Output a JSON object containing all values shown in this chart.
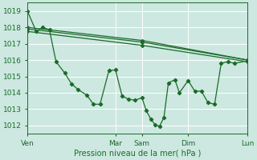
{
  "bg_color": "#cde8e0",
  "line_color": "#1a6b2a",
  "grid_color": "#ffffff",
  "xlabel": "Pression niveau de la mer( hPa )",
  "ylim": [
    1011.5,
    1019.5
  ],
  "yticks": [
    1012,
    1013,
    1014,
    1015,
    1016,
    1017,
    1018,
    1019
  ],
  "xtick_labels": [
    "Ven",
    "Mar",
    "Sam",
    "Dim",
    "Lun"
  ],
  "xtick_positions": [
    0,
    0.4,
    0.52,
    0.73,
    1.0
  ],
  "xmax": 1.0,
  "series_smooth": [
    {
      "x": [
        0.0,
        0.52,
        1.0
      ],
      "y": [
        1018.0,
        1017.2,
        1016.0
      ]
    },
    {
      "x": [
        0.0,
        0.52,
        1.0
      ],
      "y": [
        1017.9,
        1017.1,
        1016.0
      ]
    },
    {
      "x": [
        0.0,
        0.52,
        1.0
      ],
      "y": [
        1017.75,
        1016.9,
        1015.9
      ]
    }
  ],
  "series_zigzag": {
    "x": [
      0.0,
      0.04,
      0.07,
      0.1,
      0.13,
      0.17,
      0.2,
      0.23,
      0.27,
      0.3,
      0.33,
      0.37,
      0.4,
      0.43,
      0.46,
      0.49,
      0.52,
      0.54,
      0.56,
      0.58,
      0.6,
      0.62,
      0.64,
      0.67,
      0.69,
      0.73,
      0.76,
      0.79,
      0.82,
      0.85,
      0.88,
      0.91,
      0.94,
      1.0
    ],
    "y": [
      1019.0,
      1017.75,
      1018.0,
      1017.85,
      1015.9,
      1015.2,
      1014.55,
      1014.2,
      1013.85,
      1013.3,
      1013.3,
      1015.35,
      1015.4,
      1013.8,
      1013.6,
      1013.55,
      1013.7,
      1012.9,
      1012.4,
      1012.05,
      1011.95,
      1012.5,
      1014.6,
      1014.8,
      1014.0,
      1014.75,
      1014.1,
      1014.1,
      1013.4,
      1013.3,
      1015.8,
      1015.9,
      1015.8,
      1015.95
    ]
  }
}
